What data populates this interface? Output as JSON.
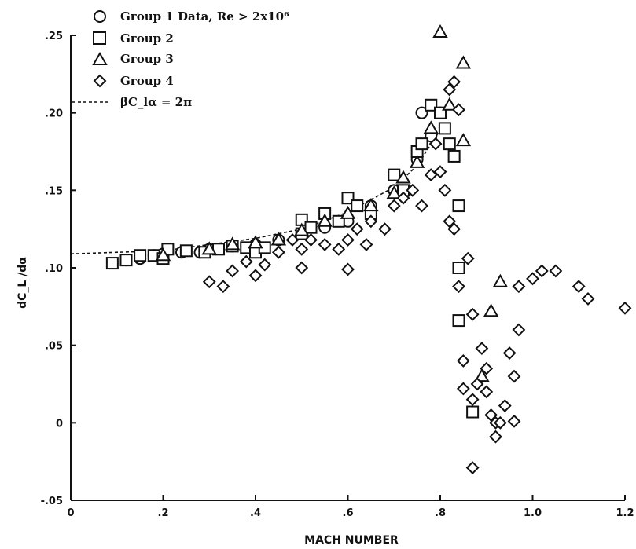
{
  "chart_data": {
    "type": "scatter",
    "title": "",
    "xlabel": "MACH NUMBER",
    "ylabel": "dC_L /dα",
    "xlim": [
      0,
      1.2
    ],
    "ylim": [
      -0.05,
      0.25
    ],
    "x_ticks": [
      {
        "value": 0,
        "label": "0"
      },
      {
        "value": 0.2,
        "label": ".2"
      },
      {
        "value": 0.4,
        "label": ".4"
      },
      {
        "value": 0.6,
        "label": ".6"
      },
      {
        "value": 0.8,
        "label": ".8"
      },
      {
        "value": 1.0,
        "label": "1.0"
      },
      {
        "value": 1.2,
        "label": "1.2"
      }
    ],
    "y_ticks": [
      {
        "value": -0.05,
        "label": "-.05"
      },
      {
        "value": 0,
        "label": "0"
      },
      {
        "value": 0.05,
        "label": ".05"
      },
      {
        "value": 0.1,
        "label": ".10"
      },
      {
        "value": 0.15,
        "label": ".15"
      },
      {
        "value": 0.2,
        "label": ".20"
      },
      {
        "value": 0.25,
        "label": ".25"
      }
    ],
    "grid": false,
    "legend_position": "top-left",
    "series": [
      {
        "name": "Group 1 Data, Re > 2x10⁶",
        "marker": "circle",
        "points": [
          [
            0.12,
            0.105
          ],
          [
            0.15,
            0.106
          ],
          [
            0.18,
            0.108
          ],
          [
            0.2,
            0.109
          ],
          [
            0.24,
            0.11
          ],
          [
            0.28,
            0.11
          ],
          [
            0.3,
            0.112
          ],
          [
            0.35,
            0.114
          ],
          [
            0.4,
            0.115
          ],
          [
            0.45,
            0.118
          ],
          [
            0.5,
            0.122
          ],
          [
            0.55,
            0.126
          ],
          [
            0.6,
            0.13
          ],
          [
            0.65,
            0.14
          ],
          [
            0.7,
            0.15
          ],
          [
            0.75,
            0.17
          ],
          [
            0.76,
            0.2
          ],
          [
            0.78,
            0.185
          ],
          [
            0.8,
            0.2
          ]
        ]
      },
      {
        "name": "Group 2",
        "marker": "square",
        "points": [
          [
            0.09,
            0.103
          ],
          [
            0.12,
            0.105
          ],
          [
            0.15,
            0.108
          ],
          [
            0.18,
            0.108
          ],
          [
            0.2,
            0.106
          ],
          [
            0.21,
            0.112
          ],
          [
            0.25,
            0.111
          ],
          [
            0.29,
            0.11
          ],
          [
            0.32,
            0.112
          ],
          [
            0.35,
            0.114
          ],
          [
            0.38,
            0.113
          ],
          [
            0.4,
            0.11
          ],
          [
            0.42,
            0.113
          ],
          [
            0.5,
            0.131
          ],
          [
            0.5,
            0.122
          ],
          [
            0.52,
            0.126
          ],
          [
            0.55,
            0.135
          ],
          [
            0.58,
            0.13
          ],
          [
            0.6,
            0.145
          ],
          [
            0.62,
            0.14
          ],
          [
            0.65,
            0.135
          ],
          [
            0.7,
            0.16
          ],
          [
            0.72,
            0.15
          ],
          [
            0.75,
            0.175
          ],
          [
            0.76,
            0.18
          ],
          [
            0.78,
            0.205
          ],
          [
            0.8,
            0.2
          ],
          [
            0.81,
            0.19
          ],
          [
            0.82,
            0.18
          ],
          [
            0.83,
            0.172
          ],
          [
            0.84,
            0.14
          ],
          [
            0.84,
            0.1
          ],
          [
            0.84,
            0.066
          ],
          [
            0.87,
            0.007
          ]
        ]
      },
      {
        "name": "Group 3",
        "marker": "triangle",
        "points": [
          [
            0.2,
            0.108
          ],
          [
            0.3,
            0.112
          ],
          [
            0.35,
            0.115
          ],
          [
            0.4,
            0.116
          ],
          [
            0.45,
            0.118
          ],
          [
            0.5,
            0.124
          ],
          [
            0.55,
            0.13
          ],
          [
            0.6,
            0.135
          ],
          [
            0.65,
            0.14
          ],
          [
            0.7,
            0.148
          ],
          [
            0.72,
            0.158
          ],
          [
            0.75,
            0.168
          ],
          [
            0.78,
            0.19
          ],
          [
            0.8,
            0.252
          ],
          [
            0.82,
            0.205
          ],
          [
            0.85,
            0.232
          ],
          [
            0.85,
            0.182
          ],
          [
            0.91,
            0.072
          ],
          [
            0.93,
            0.091
          ],
          [
            0.89,
            0.03
          ]
        ]
      },
      {
        "name": "Group 4",
        "marker": "diamond",
        "points": [
          [
            0.3,
            0.091
          ],
          [
            0.33,
            0.088
          ],
          [
            0.35,
            0.098
          ],
          [
            0.38,
            0.104
          ],
          [
            0.4,
            0.095
          ],
          [
            0.42,
            0.102
          ],
          [
            0.45,
            0.11
          ],
          [
            0.48,
            0.118
          ],
          [
            0.5,
            0.1
          ],
          [
            0.5,
            0.112
          ],
          [
            0.52,
            0.118
          ],
          [
            0.55,
            0.115
          ],
          [
            0.58,
            0.112
          ],
          [
            0.6,
            0.099
          ],
          [
            0.6,
            0.118
          ],
          [
            0.62,
            0.125
          ],
          [
            0.64,
            0.115
          ],
          [
            0.65,
            0.13
          ],
          [
            0.68,
            0.125
          ],
          [
            0.7,
            0.14
          ],
          [
            0.72,
            0.145
          ],
          [
            0.74,
            0.15
          ],
          [
            0.76,
            0.14
          ],
          [
            0.78,
            0.16
          ],
          [
            0.79,
            0.18
          ],
          [
            0.8,
            0.162
          ],
          [
            0.81,
            0.15
          ],
          [
            0.82,
            0.13
          ],
          [
            0.82,
            0.215
          ],
          [
            0.83,
            0.22
          ],
          [
            0.83,
            0.125
          ],
          [
            0.84,
            0.202
          ],
          [
            0.84,
            0.088
          ],
          [
            0.85,
            0.04
          ],
          [
            0.85,
            0.022
          ],
          [
            0.86,
            0.106
          ],
          [
            0.87,
            0.07
          ],
          [
            0.87,
            0.015
          ],
          [
            0.87,
            -0.029
          ],
          [
            0.88,
            0.025
          ],
          [
            0.89,
            0.048
          ],
          [
            0.9,
            0.035
          ],
          [
            0.9,
            0.02
          ],
          [
            0.91,
            0.005
          ],
          [
            0.92,
            0.0
          ],
          [
            0.92,
            -0.009
          ],
          [
            0.93,
            0.0
          ],
          [
            0.94,
            0.011
          ],
          [
            0.95,
            0.045
          ],
          [
            0.96,
            0.03
          ],
          [
            0.96,
            0.001
          ],
          [
            0.97,
            0.088
          ],
          [
            0.97,
            0.06
          ],
          [
            1.0,
            0.093
          ],
          [
            1.02,
            0.098
          ],
          [
            1.05,
            0.098
          ],
          [
            1.1,
            0.088
          ],
          [
            1.12,
            0.08
          ],
          [
            1.2,
            0.074
          ]
        ]
      }
    ],
    "reference_line": {
      "label": "βC_lα = 2π",
      "points": [
        [
          0,
          0.109
        ],
        [
          0.2,
          0.111
        ],
        [
          0.4,
          0.119
        ],
        [
          0.5,
          0.125
        ],
        [
          0.6,
          0.136
        ],
        [
          0.7,
          0.152
        ],
        [
          0.75,
          0.166
        ],
        [
          0.8,
          0.189
        ]
      ]
    }
  }
}
